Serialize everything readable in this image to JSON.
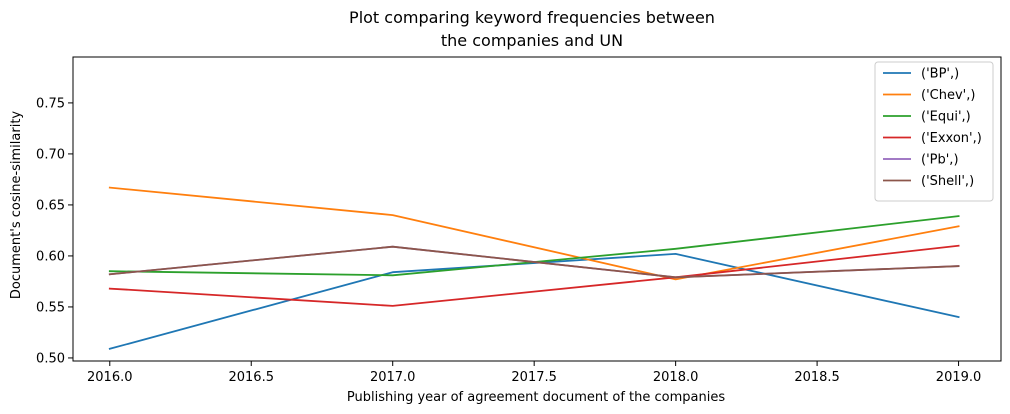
{
  "chart_data": {
    "type": "line",
    "title": "Plot comparing keyword frequencies between\nthe companies and UN",
    "xlabel": "Publishing year of agreement document of the companies",
    "ylabel": "Document's cosine-similarity",
    "xlim": [
      1985,
      2019.15
    ],
    "ylim": [
      0.497,
      0.795
    ],
    "x_ticks": [
      2016.0,
      2016.5,
      2017.0,
      2017.5,
      2018.0,
      2018.5,
      2019.0
    ],
    "x_tick_labels": [
      "2016.0",
      "2016.5",
      "2017.0",
      "2017.5",
      "2018.0",
      "2018.5",
      "2019.0"
    ],
    "y_ticks": [
      0.5,
      0.55,
      0.6,
      0.65,
      0.7,
      0.75
    ],
    "y_tick_labels": [
      "0.50",
      "0.55",
      "0.60",
      "0.65",
      "0.70",
      "0.75"
    ],
    "grid": false,
    "legend_position": "top-right",
    "x": [
      2016,
      2017,
      2018,
      2019
    ],
    "series": [
      {
        "name": "('BP',)",
        "color": "#1f77b4",
        "values": [
          0.509,
          0.584,
          0.602,
          0.54
        ]
      },
      {
        "name": "('Chev',)",
        "color": "#ff7f0e",
        "values": [
          0.667,
          0.64,
          0.577,
          0.629
        ]
      },
      {
        "name": "('Equi',)",
        "color": "#2ca02c",
        "values": [
          0.585,
          0.581,
          0.607,
          0.639
        ]
      },
      {
        "name": "('Exxon',)",
        "color": "#d62728",
        "values": [
          0.568,
          0.551,
          0.579,
          0.61
        ]
      },
      {
        "name": "('Pb',)",
        "color": "#9467bd",
        "values": [
          0.582,
          0.609,
          0.579,
          0.59
        ]
      },
      {
        "name": "('Shell',)",
        "color": "#8c564b",
        "values": [
          0.582,
          0.609,
          0.579,
          0.59
        ]
      }
    ]
  }
}
